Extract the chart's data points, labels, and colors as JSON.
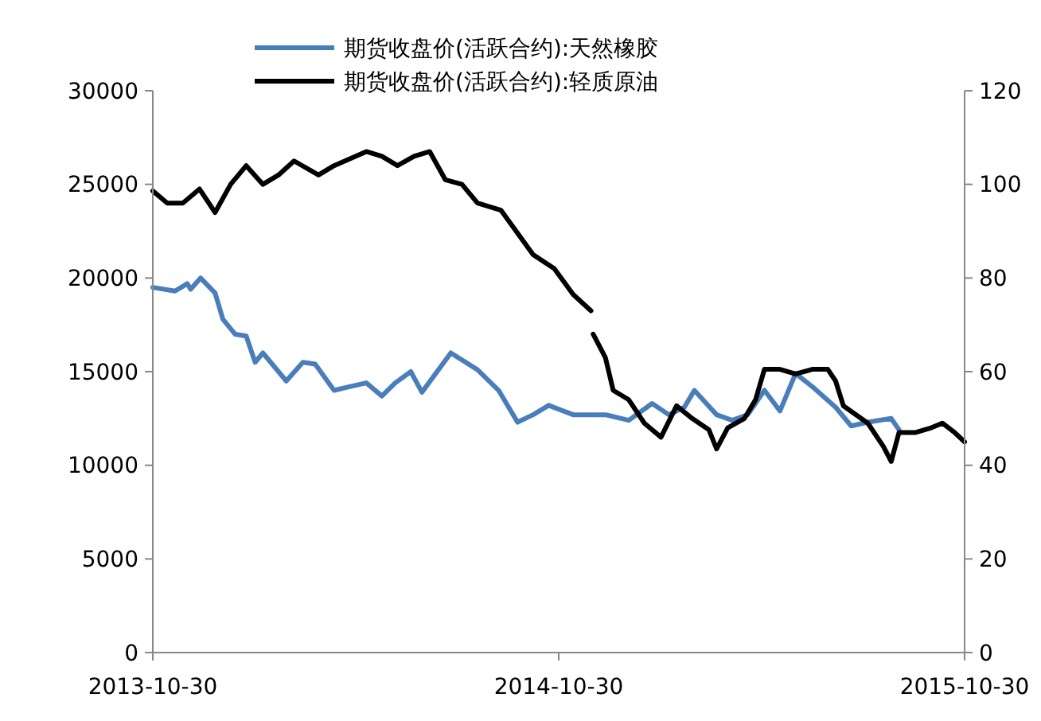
{
  "chart_data": {
    "type": "line",
    "legend": "top",
    "grid": false,
    "line_style": "solid",
    "xlim": [
      "2013-10-30",
      "2015-10-30"
    ],
    "xticks": [
      {
        "value": "2013-10-30",
        "label": "2013-10-30"
      },
      {
        "value": "2014-10-30",
        "label": "2014-10-30"
      },
      {
        "value": "2015-10-30",
        "label": "2015-10-30"
      }
    ],
    "ylim": [
      0,
      30000
    ],
    "yticks": [
      0,
      5000,
      10000,
      15000,
      20000,
      25000,
      30000
    ],
    "y2lim": [
      0,
      120
    ],
    "y2ticks": [
      0,
      20,
      40,
      60,
      80,
      100,
      120
    ],
    "series": [
      {
        "name": "期货收盘价(活跃合约):天然橡胶",
        "color": "#4a7ebb",
        "x": [
          "2013-10-30",
          "2013-11-19",
          "2013-11-30",
          "2013-12-03",
          "2013-12-12",
          "2013-12-25",
          "2014-01-01",
          "2014-01-12",
          "2014-01-22",
          "2014-01-30",
          "2014-02-06",
          "2014-02-27",
          "2014-03-14",
          "2014-03-25",
          "2014-04-11",
          "2014-04-25",
          "2014-05-10",
          "2014-05-24",
          "2014-06-05",
          "2014-06-19",
          "2014-06-29",
          "2014-07-25",
          "2014-08-18",
          "2014-09-06",
          "2014-09-23",
          "2014-10-07",
          "2014-10-21",
          "2014-11-12",
          "2014-12-11",
          "2015-01-01",
          "2015-01-22",
          "2015-02-06",
          "2015-02-20",
          "2015-03-01",
          "2015-03-21",
          "2015-04-04",
          "2015-04-18",
          "2015-05-03",
          "2015-05-17",
          "2015-05-31",
          "2015-06-15",
          "2015-07-06",
          "2015-07-20",
          "2015-08-04",
          "2015-08-25",
          "2015-09-01"
        ],
        "values": [
          19500,
          19300,
          19700,
          19400,
          20000,
          19200,
          17800,
          17000,
          16900,
          15500,
          16000,
          14500,
          15500,
          15400,
          14000,
          14200,
          14400,
          13700,
          14400,
          15000,
          13900,
          16000,
          15100,
          14000,
          12300,
          12700,
          13200,
          12700,
          12700,
          12400,
          13300,
          12700,
          13100,
          14000,
          12700,
          12400,
          12700,
          14000,
          12900,
          14900,
          14200,
          13100,
          12100,
          12300,
          12500,
          11900
        ]
      },
      {
        "name": "期货收盘价(活跃合约):轻质原油",
        "color": "#000000",
        "axis": "y2",
        "x": [
          "2013-10-30",
          "2013-11-12",
          "2013-11-26",
          "2013-12-11",
          "2013-12-25",
          "2014-01-08",
          "2014-01-22",
          "2014-02-06",
          "2014-02-20",
          "2014-03-06",
          "2014-03-28",
          "2014-04-11",
          "2014-05-10",
          "2014-05-24",
          "2014-06-07",
          "2014-06-22",
          "2014-07-06",
          "2014-07-20",
          "2014-08-04",
          "2014-08-18",
          "2014-09-08",
          "2014-10-07",
          "2014-10-26",
          "2014-11-12",
          "2014-11-28",
          "2014-11-29",
          "2014-11-30",
          "2014-12-11",
          "2014-12-18",
          "2015-01-01",
          "2015-01-15",
          "2015-01-30",
          "2015-02-13",
          "2015-02-27",
          "2015-03-14",
          "2015-03-21",
          "2015-03-31",
          "2015-04-15",
          "2015-04-25",
          "2015-05-03",
          "2015-05-17",
          "2015-05-31",
          "2015-06-15",
          "2015-06-29",
          "2015-07-06",
          "2015-07-13",
          "2015-08-04",
          "2015-08-18",
          "2015-08-25",
          "2015-09-01",
          "2015-09-16",
          "2015-09-30",
          "2015-10-10",
          "2015-10-21",
          "2015-10-30"
        ],
        "values": [
          98.6,
          96,
          96,
          99,
          94,
          100,
          104,
          100,
          102,
          105,
          102,
          104,
          107,
          106,
          104,
          106,
          107,
          101,
          100,
          96,
          94.5,
          85,
          82,
          76.5,
          73,
          null,
          68,
          63,
          56,
          54,
          49,
          46,
          52.7,
          50,
          47.6,
          43.5,
          48,
          50,
          54,
          60.5,
          60.5,
          59.5,
          60.5,
          60.5,
          58,
          52.7,
          49,
          44,
          40.8,
          47,
          47,
          48,
          49,
          47,
          45
        ]
      }
    ]
  }
}
